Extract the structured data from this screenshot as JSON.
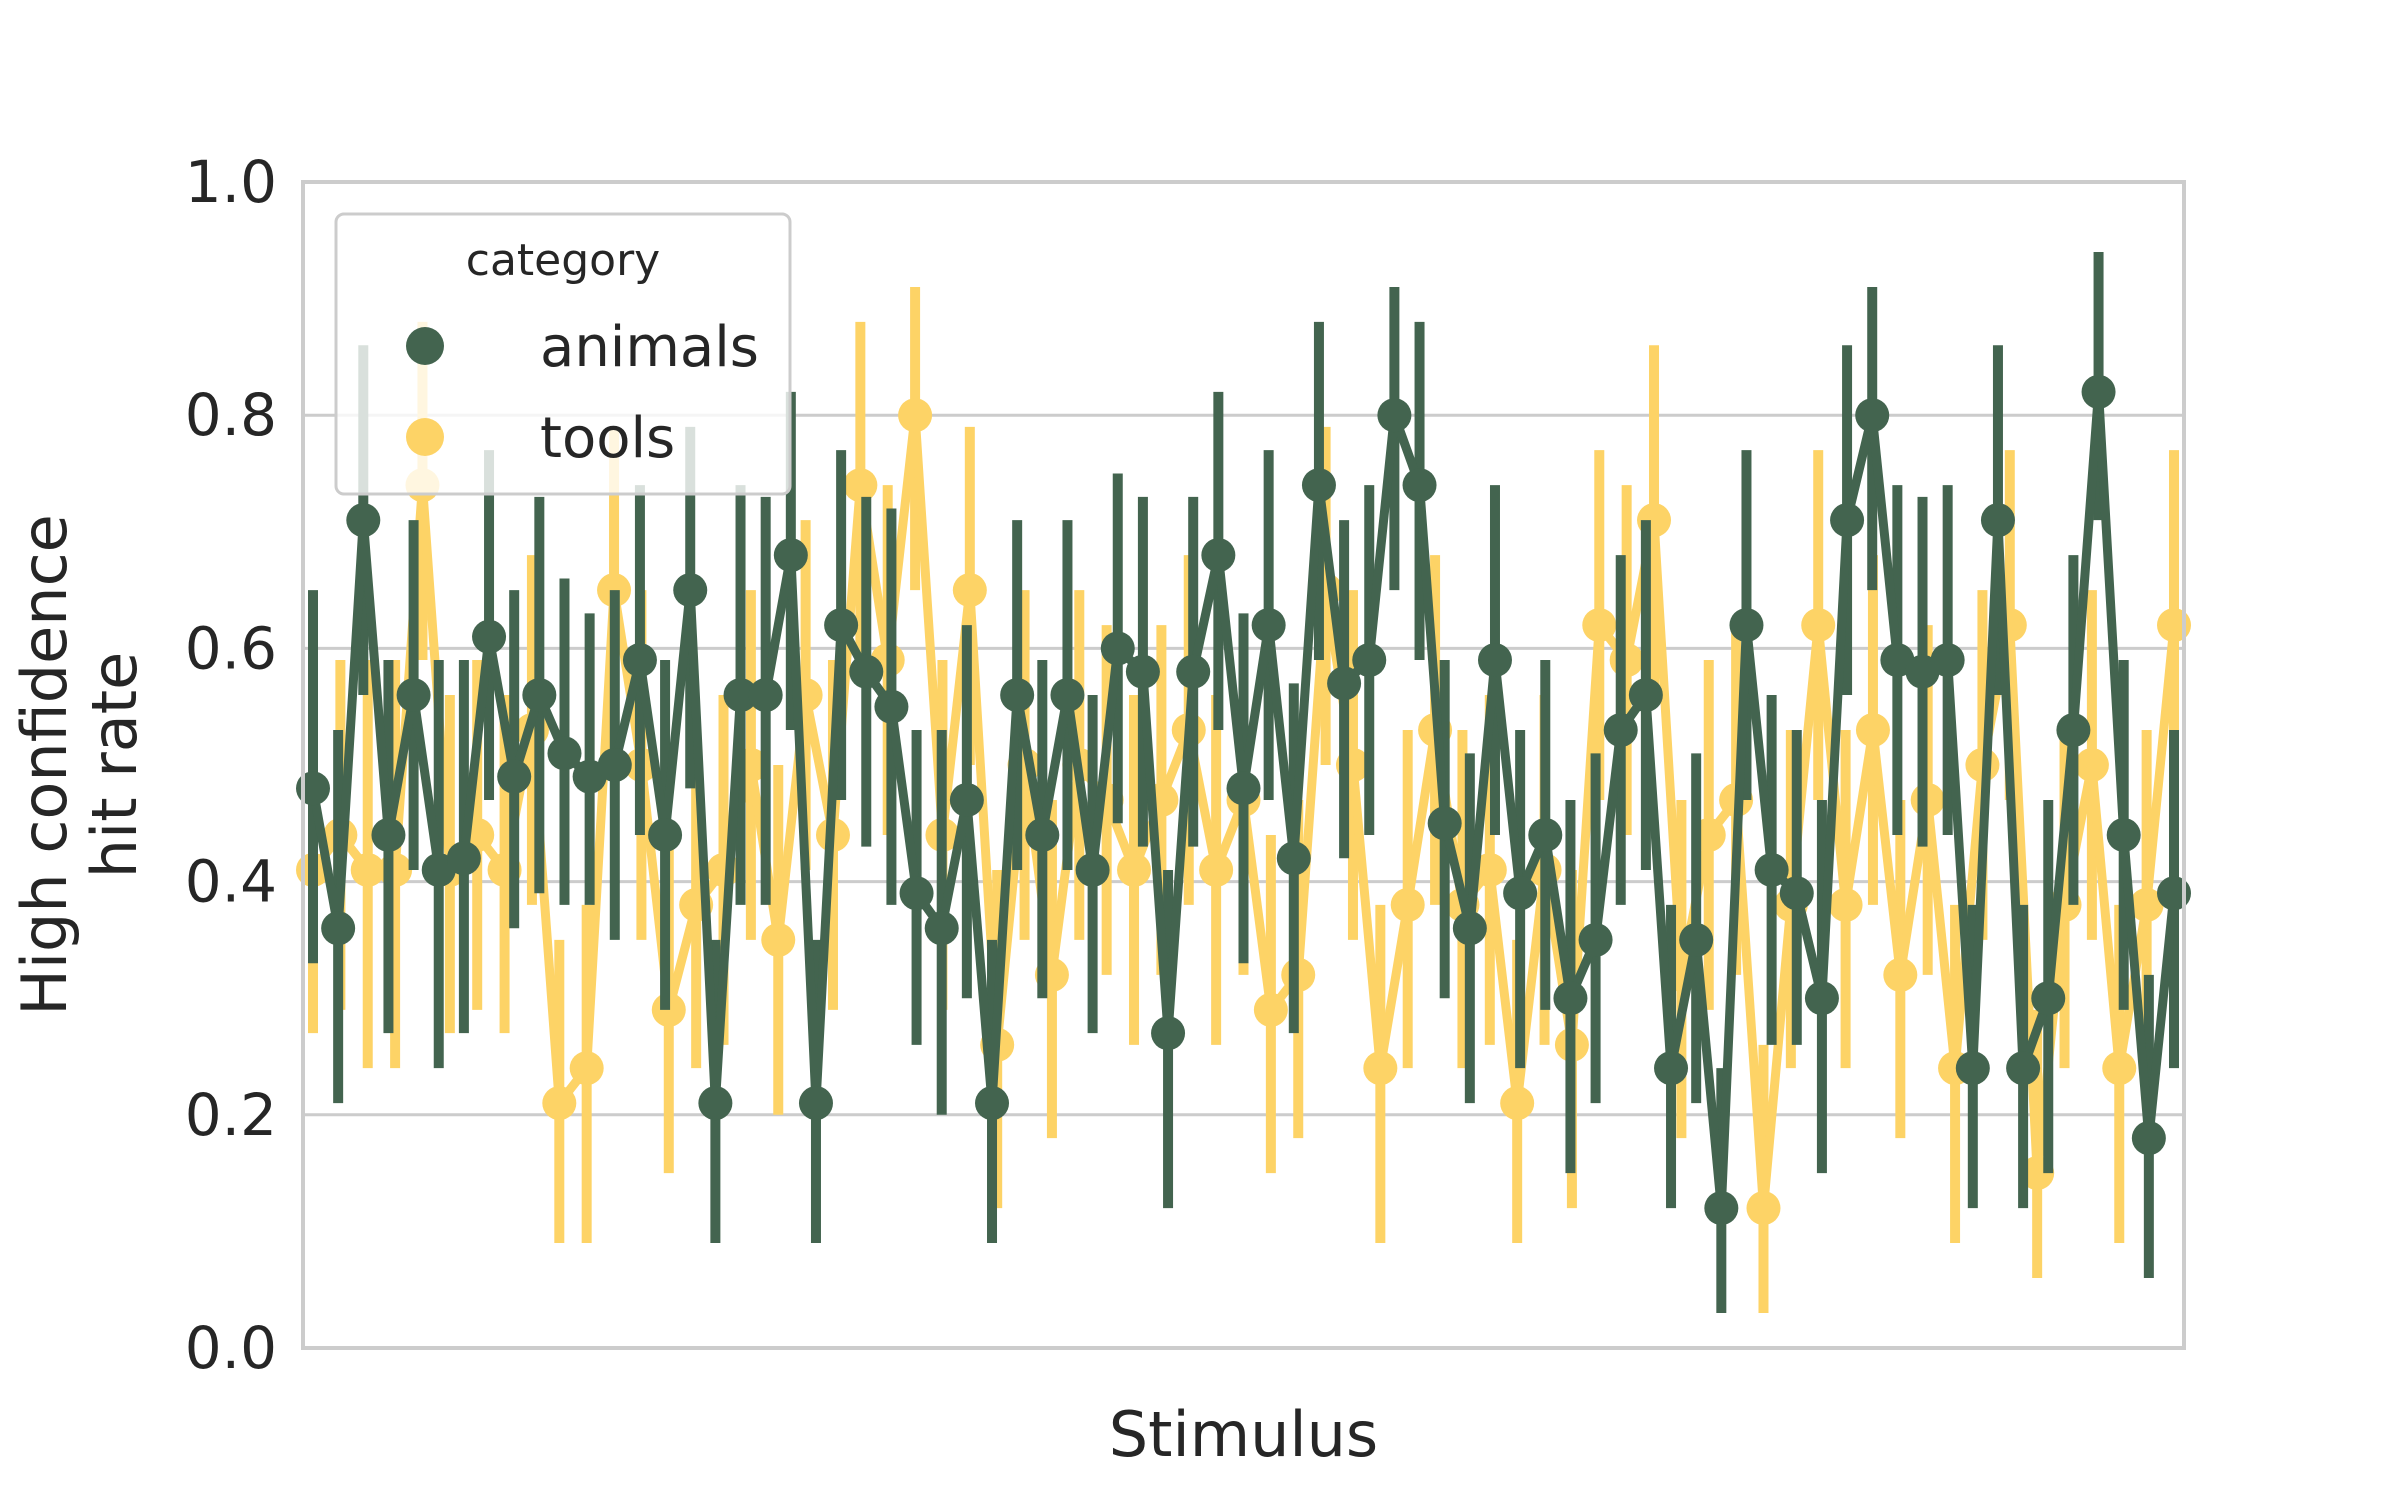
{
  "chart_data": {
    "type": "line",
    "title": "",
    "xlabel": "Stimulus",
    "ylabel": "High confidence hit rate",
    "ylabel_lines": [
      "High confidence",
      "hit rate"
    ],
    "ylim": [
      0,
      1
    ],
    "yticks": [
      "0.0",
      "0.2",
      "0.4",
      "0.6",
      "0.8",
      "1.0"
    ],
    "ytick_values": [
      0,
      0.2,
      0.4,
      0.6,
      0.8,
      1.0
    ],
    "grid": true,
    "x_tick_labels_shown": false,
    "legend": {
      "title": "category",
      "placement": "top-left",
      "entries": [
        "animals",
        "tools"
      ]
    },
    "series": [
      {
        "name": "animals",
        "color": "#43644f",
        "values": [
          0.48,
          0.36,
          0.71,
          0.44,
          0.56,
          0.41,
          0.42,
          0.61,
          0.49,
          0.56,
          0.51,
          0.49,
          0.5,
          0.59,
          0.44,
          0.65,
          0.21,
          0.56,
          0.56,
          0.68,
          0.21,
          0.62,
          0.58,
          0.55,
          0.39,
          0.36,
          0.47,
          0.21,
          0.56,
          0.44,
          0.56,
          0.41,
          0.6,
          0.58,
          0.27,
          0.58,
          0.68,
          0.48,
          0.62,
          0.42,
          0.74,
          0.57,
          0.59,
          0.8,
          0.74,
          0.45,
          0.36,
          0.59,
          0.39,
          0.44,
          0.3,
          0.35,
          0.53,
          0.56,
          0.24,
          0.35,
          0.12,
          0.62,
          0.41,
          0.39,
          0.3,
          0.71,
          0.8,
          0.59,
          0.58,
          0.59,
          0.24,
          0.71,
          0.24,
          0.3,
          0.53,
          0.82,
          0.44,
          0.18,
          0.39
        ],
        "lower": [
          0.33,
          0.21,
          0.56,
          0.27,
          0.41,
          0.24,
          0.27,
          0.47,
          0.36,
          0.39,
          0.38,
          0.38,
          0.35,
          0.44,
          0.29,
          0.48,
          0.09,
          0.38,
          0.38,
          0.53,
          0.09,
          0.47,
          0.43,
          0.38,
          0.26,
          0.2,
          0.3,
          0.09,
          0.41,
          0.3,
          0.41,
          0.27,
          0.45,
          0.43,
          0.12,
          0.43,
          0.53,
          0.33,
          0.47,
          0.27,
          0.59,
          0.42,
          0.44,
          0.65,
          0.59,
          0.3,
          0.21,
          0.44,
          0.24,
          0.29,
          0.15,
          0.21,
          0.38,
          0.41,
          0.12,
          0.21,
          0.03,
          0.47,
          0.26,
          0.26,
          0.15,
          0.56,
          0.65,
          0.44,
          0.43,
          0.44,
          0.12,
          0.56,
          0.12,
          0.15,
          0.38,
          0.71,
          0.29,
          0.06,
          0.24
        ],
        "upper": [
          0.65,
          0.53,
          0.86,
          0.59,
          0.71,
          0.59,
          0.59,
          0.77,
          0.65,
          0.73,
          0.66,
          0.63,
          0.65,
          0.74,
          0.59,
          0.79,
          0.35,
          0.74,
          0.73,
          0.82,
          0.35,
          0.77,
          0.73,
          0.72,
          0.53,
          0.53,
          0.62,
          0.35,
          0.71,
          0.59,
          0.71,
          0.56,
          0.75,
          0.73,
          0.41,
          0.73,
          0.82,
          0.63,
          0.77,
          0.57,
          0.88,
          0.71,
          0.74,
          0.91,
          0.88,
          0.59,
          0.51,
          0.74,
          0.53,
          0.59,
          0.47,
          0.51,
          0.68,
          0.71,
          0.38,
          0.51,
          0.24,
          0.77,
          0.56,
          0.53,
          0.47,
          0.86,
          0.91,
          0.74,
          0.73,
          0.74,
          0.38,
          0.86,
          0.38,
          0.47,
          0.68,
          0.94,
          0.59,
          0.32,
          0.53
        ]
      },
      {
        "name": "tools",
        "color": "#fdd366",
        "values": [
          0.41,
          0.44,
          0.41,
          0.41,
          0.74,
          0.41,
          0.44,
          0.41,
          0.53,
          0.21,
          0.24,
          0.65,
          0.5,
          0.29,
          0.38,
          0.41,
          0.5,
          0.35,
          0.56,
          0.44,
          0.74,
          0.59,
          0.8,
          0.44,
          0.65,
          0.26,
          0.5,
          0.32,
          0.5,
          0.47,
          0.41,
          0.47,
          0.53,
          0.41,
          0.47,
          0.29,
          0.32,
          0.65,
          0.5,
          0.24,
          0.38,
          0.53,
          0.38,
          0.41,
          0.21,
          0.41,
          0.26,
          0.62,
          0.59,
          0.71,
          0.32,
          0.44,
          0.47,
          0.12,
          0.38,
          0.62,
          0.38,
          0.53,
          0.32,
          0.47,
          0.24,
          0.5,
          0.62,
          0.15,
          0.38,
          0.5,
          0.24,
          0.38,
          0.62
        ],
        "lower": [
          0.27,
          0.29,
          0.24,
          0.24,
          0.59,
          0.27,
          0.29,
          0.27,
          0.38,
          0.09,
          0.09,
          0.5,
          0.35,
          0.15,
          0.24,
          0.26,
          0.35,
          0.2,
          0.41,
          0.29,
          0.59,
          0.44,
          0.65,
          0.29,
          0.5,
          0.12,
          0.35,
          0.18,
          0.35,
          0.32,
          0.26,
          0.32,
          0.38,
          0.26,
          0.32,
          0.15,
          0.18,
          0.5,
          0.35,
          0.09,
          0.24,
          0.38,
          0.24,
          0.26,
          0.09,
          0.26,
          0.12,
          0.47,
          0.44,
          0.56,
          0.18,
          0.29,
          0.32,
          0.03,
          0.24,
          0.47,
          0.24,
          0.38,
          0.18,
          0.32,
          0.09,
          0.35,
          0.47,
          0.06,
          0.24,
          0.35,
          0.09,
          0.24,
          0.47
        ],
        "upper": [
          0.56,
          0.59,
          0.59,
          0.59,
          0.88,
          0.56,
          0.59,
          0.56,
          0.68,
          0.35,
          0.38,
          0.79,
          0.65,
          0.44,
          0.53,
          0.56,
          0.65,
          0.5,
          0.71,
          0.59,
          0.88,
          0.74,
          0.91,
          0.59,
          0.79,
          0.41,
          0.65,
          0.47,
          0.65,
          0.62,
          0.56,
          0.62,
          0.68,
          0.56,
          0.62,
          0.44,
          0.47,
          0.79,
          0.65,
          0.38,
          0.53,
          0.68,
          0.53,
          0.56,
          0.35,
          0.56,
          0.41,
          0.77,
          0.74,
          0.86,
          0.47,
          0.59,
          0.62,
          0.26,
          0.53,
          0.77,
          0.53,
          0.68,
          0.47,
          0.62,
          0.38,
          0.65,
          0.77,
          0.29,
          0.53,
          0.65,
          0.38,
          0.53,
          0.77
        ]
      }
    ]
  }
}
